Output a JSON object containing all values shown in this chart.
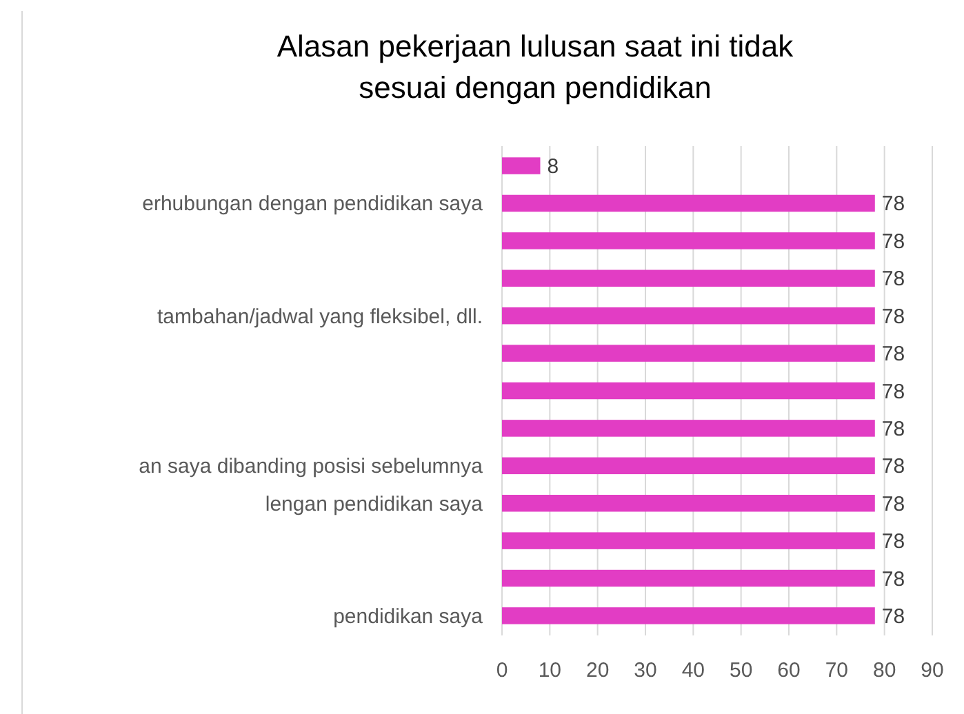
{
  "chart_data": {
    "type": "bar",
    "orientation": "horizontal",
    "title": "Alasan pekerjaan lulusan saat ini tidak sesuai dengan pendidikan",
    "categories": [
      null,
      "erhubungan dengan pendidikan saya",
      null,
      null,
      "tambahan/jadwal yang fleksibel, dll.",
      null,
      null,
      null,
      "an saya dibanding posisi sebelumnya",
      "lengan pendidikan saya",
      null,
      null,
      "pendidikan saya"
    ],
    "values": [
      8,
      78,
      78,
      78,
      78,
      78,
      78,
      78,
      78,
      78,
      78,
      78,
      78
    ],
    "color": "#e23dc4",
    "xlim": [
      0,
      90
    ],
    "xticks": [
      0,
      10,
      20,
      30,
      40,
      50,
      60,
      70,
      80,
      90
    ],
    "grid": "x",
    "data_labels": true
  }
}
